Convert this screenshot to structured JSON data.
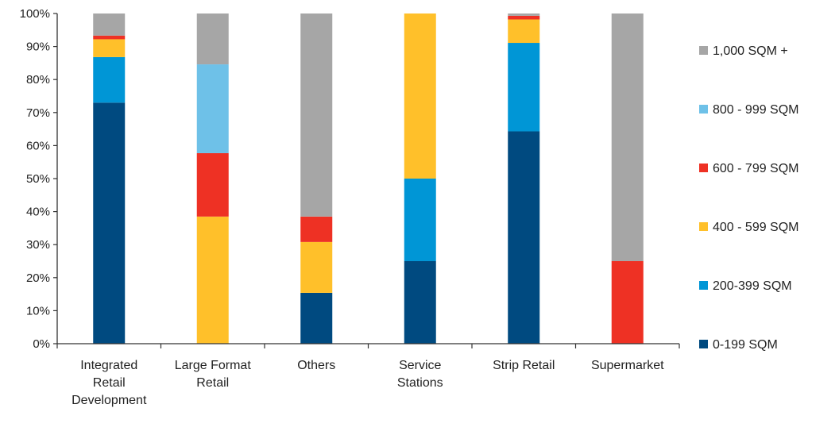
{
  "chart_data": {
    "type": "bar",
    "stacked": true,
    "percent_stacked": true,
    "categories": [
      "Integrated Retail Development",
      "Large Format Retail",
      "Others",
      "Service Stations",
      "Strip Retail",
      "Supermarket"
    ],
    "category_label_lines": [
      [
        "Integrated",
        "Retail",
        "Development"
      ],
      [
        "Large Format",
        "Retail"
      ],
      [
        "Others"
      ],
      [
        "Service",
        "Stations"
      ],
      [
        "Strip Retail"
      ],
      [
        "Supermarket"
      ]
    ],
    "series": [
      {
        "name": "0-199 SQM",
        "color": "#004A80",
        "values": [
          73,
          0,
          15.4,
          25,
          64.3,
          0
        ]
      },
      {
        "name": "200-399 SQM",
        "color": "#0096D6",
        "values": [
          13.8,
          0,
          0,
          25,
          26.8,
          0
        ]
      },
      {
        "name": "400 - 599 SQM",
        "color": "#FFC02A",
        "values": [
          5.4,
          38.5,
          15.4,
          50,
          7.1,
          0
        ]
      },
      {
        "name": "600 - 799 SQM",
        "color": "#EE3124",
        "values": [
          1.1,
          19.2,
          7.7,
          0,
          1.1,
          25
        ]
      },
      {
        "name": "800 - 999 SQM",
        "color": "#6EC1E8",
        "values": [
          0,
          26.9,
          0,
          0,
          0,
          0
        ]
      },
      {
        "name": "1,000 SQM +",
        "color": "#A6A6A6",
        "values": [
          6.7,
          15.4,
          61.5,
          0,
          0.7,
          75
        ]
      }
    ],
    "ylim": [
      0,
      100
    ],
    "yticks": [
      "0%",
      "10%",
      "20%",
      "30%",
      "40%",
      "50%",
      "60%",
      "70%",
      "80%",
      "90%",
      "100%"
    ],
    "title": "",
    "xlabel": "",
    "ylabel": "",
    "legend_position": "right",
    "grid": false
  }
}
